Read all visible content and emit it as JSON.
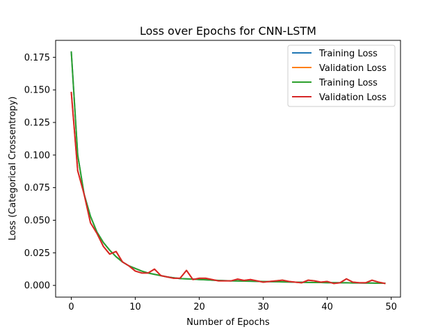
{
  "chart_data": {
    "type": "line",
    "title": "Loss over Epochs for CNN-LSTM",
    "xlabel": "Number of Epochs",
    "ylabel": "Loss (Categorical Crossentropy)",
    "xlim": [
      -2.45,
      51.45
    ],
    "ylim": [
      -0.009,
      0.188
    ],
    "xticks": [
      "0",
      "10",
      "20",
      "30",
      "40",
      "50"
    ],
    "yticks": [
      "0.000",
      "0.025",
      "0.050",
      "0.075",
      "0.100",
      "0.125",
      "0.150",
      "0.175"
    ],
    "grid": false,
    "legend_position": "top-right",
    "x": [
      0,
      1,
      2,
      3,
      4,
      5,
      6,
      7,
      8,
      9,
      10,
      11,
      12,
      13,
      14,
      15,
      16,
      17,
      18,
      19,
      20,
      21,
      22,
      23,
      24,
      25,
      26,
      27,
      28,
      29,
      30,
      31,
      32,
      33,
      34,
      35,
      36,
      37,
      38,
      39,
      40,
      41,
      42,
      43,
      44,
      45,
      46,
      47,
      48,
      49
    ],
    "series": [
      {
        "name": "Training Loss",
        "color": "#1f77b4",
        "values": [
          0.179,
          0.1,
          0.07,
          0.053,
          0.041,
          0.033,
          0.027,
          0.022,
          0.018,
          0.015,
          0.013,
          0.011,
          0.0095,
          0.0085,
          0.0075,
          0.0065,
          0.0058,
          0.0052,
          0.005,
          0.0048,
          0.0045,
          0.0043,
          0.004,
          0.0038,
          0.0036,
          0.0035,
          0.0034,
          0.0033,
          0.0032,
          0.0031,
          0.003,
          0.0029,
          0.0028,
          0.0027,
          0.0026,
          0.0025,
          0.0024,
          0.0023,
          0.0022,
          0.0022,
          0.0021,
          0.0021,
          0.002,
          0.002,
          0.0019,
          0.0019,
          0.0018,
          0.0018,
          0.0017,
          0.0017
        ]
      },
      {
        "name": "Validation Loss",
        "color": "#ff7f0e",
        "values": [
          0.148,
          0.088,
          0.07,
          0.048,
          0.04,
          0.03,
          0.024,
          0.026,
          0.018,
          0.015,
          0.011,
          0.0095,
          0.0095,
          0.0125,
          0.0075,
          0.0065,
          0.0055,
          0.0055,
          0.0115,
          0.0045,
          0.0055,
          0.0055,
          0.0045,
          0.0035,
          0.0035,
          0.0035,
          0.0048,
          0.0038,
          0.0045,
          0.0035,
          0.0025,
          0.003,
          0.0035,
          0.004,
          0.003,
          0.0025,
          0.002,
          0.004,
          0.0035,
          0.0025,
          0.003,
          0.0015,
          0.002,
          0.005,
          0.0025,
          0.002,
          0.002,
          0.004,
          0.0025,
          0.0015
        ]
      },
      {
        "name": "Training Loss",
        "color": "#2ca02c",
        "values": [
          0.179,
          0.1,
          0.07,
          0.053,
          0.041,
          0.033,
          0.027,
          0.022,
          0.018,
          0.015,
          0.013,
          0.011,
          0.0095,
          0.0085,
          0.0075,
          0.0065,
          0.0058,
          0.0052,
          0.005,
          0.0048,
          0.0045,
          0.0043,
          0.004,
          0.0038,
          0.0036,
          0.0035,
          0.0034,
          0.0033,
          0.0032,
          0.0031,
          0.003,
          0.0029,
          0.0028,
          0.0027,
          0.0026,
          0.0025,
          0.0024,
          0.0023,
          0.0022,
          0.0022,
          0.0021,
          0.0021,
          0.002,
          0.002,
          0.0019,
          0.0019,
          0.0018,
          0.0018,
          0.0017,
          0.0017
        ]
      },
      {
        "name": "Validation Loss",
        "color": "#d62728",
        "values": [
          0.148,
          0.088,
          0.07,
          0.048,
          0.04,
          0.03,
          0.024,
          0.026,
          0.018,
          0.015,
          0.011,
          0.0095,
          0.0095,
          0.0125,
          0.0075,
          0.0065,
          0.0055,
          0.0055,
          0.0115,
          0.0045,
          0.0055,
          0.0055,
          0.0045,
          0.0035,
          0.0035,
          0.0035,
          0.0048,
          0.0038,
          0.0045,
          0.0035,
          0.0025,
          0.003,
          0.0035,
          0.004,
          0.003,
          0.0025,
          0.002,
          0.004,
          0.0035,
          0.0025,
          0.003,
          0.0015,
          0.002,
          0.005,
          0.0025,
          0.002,
          0.002,
          0.004,
          0.0025,
          0.0015
        ]
      }
    ]
  }
}
